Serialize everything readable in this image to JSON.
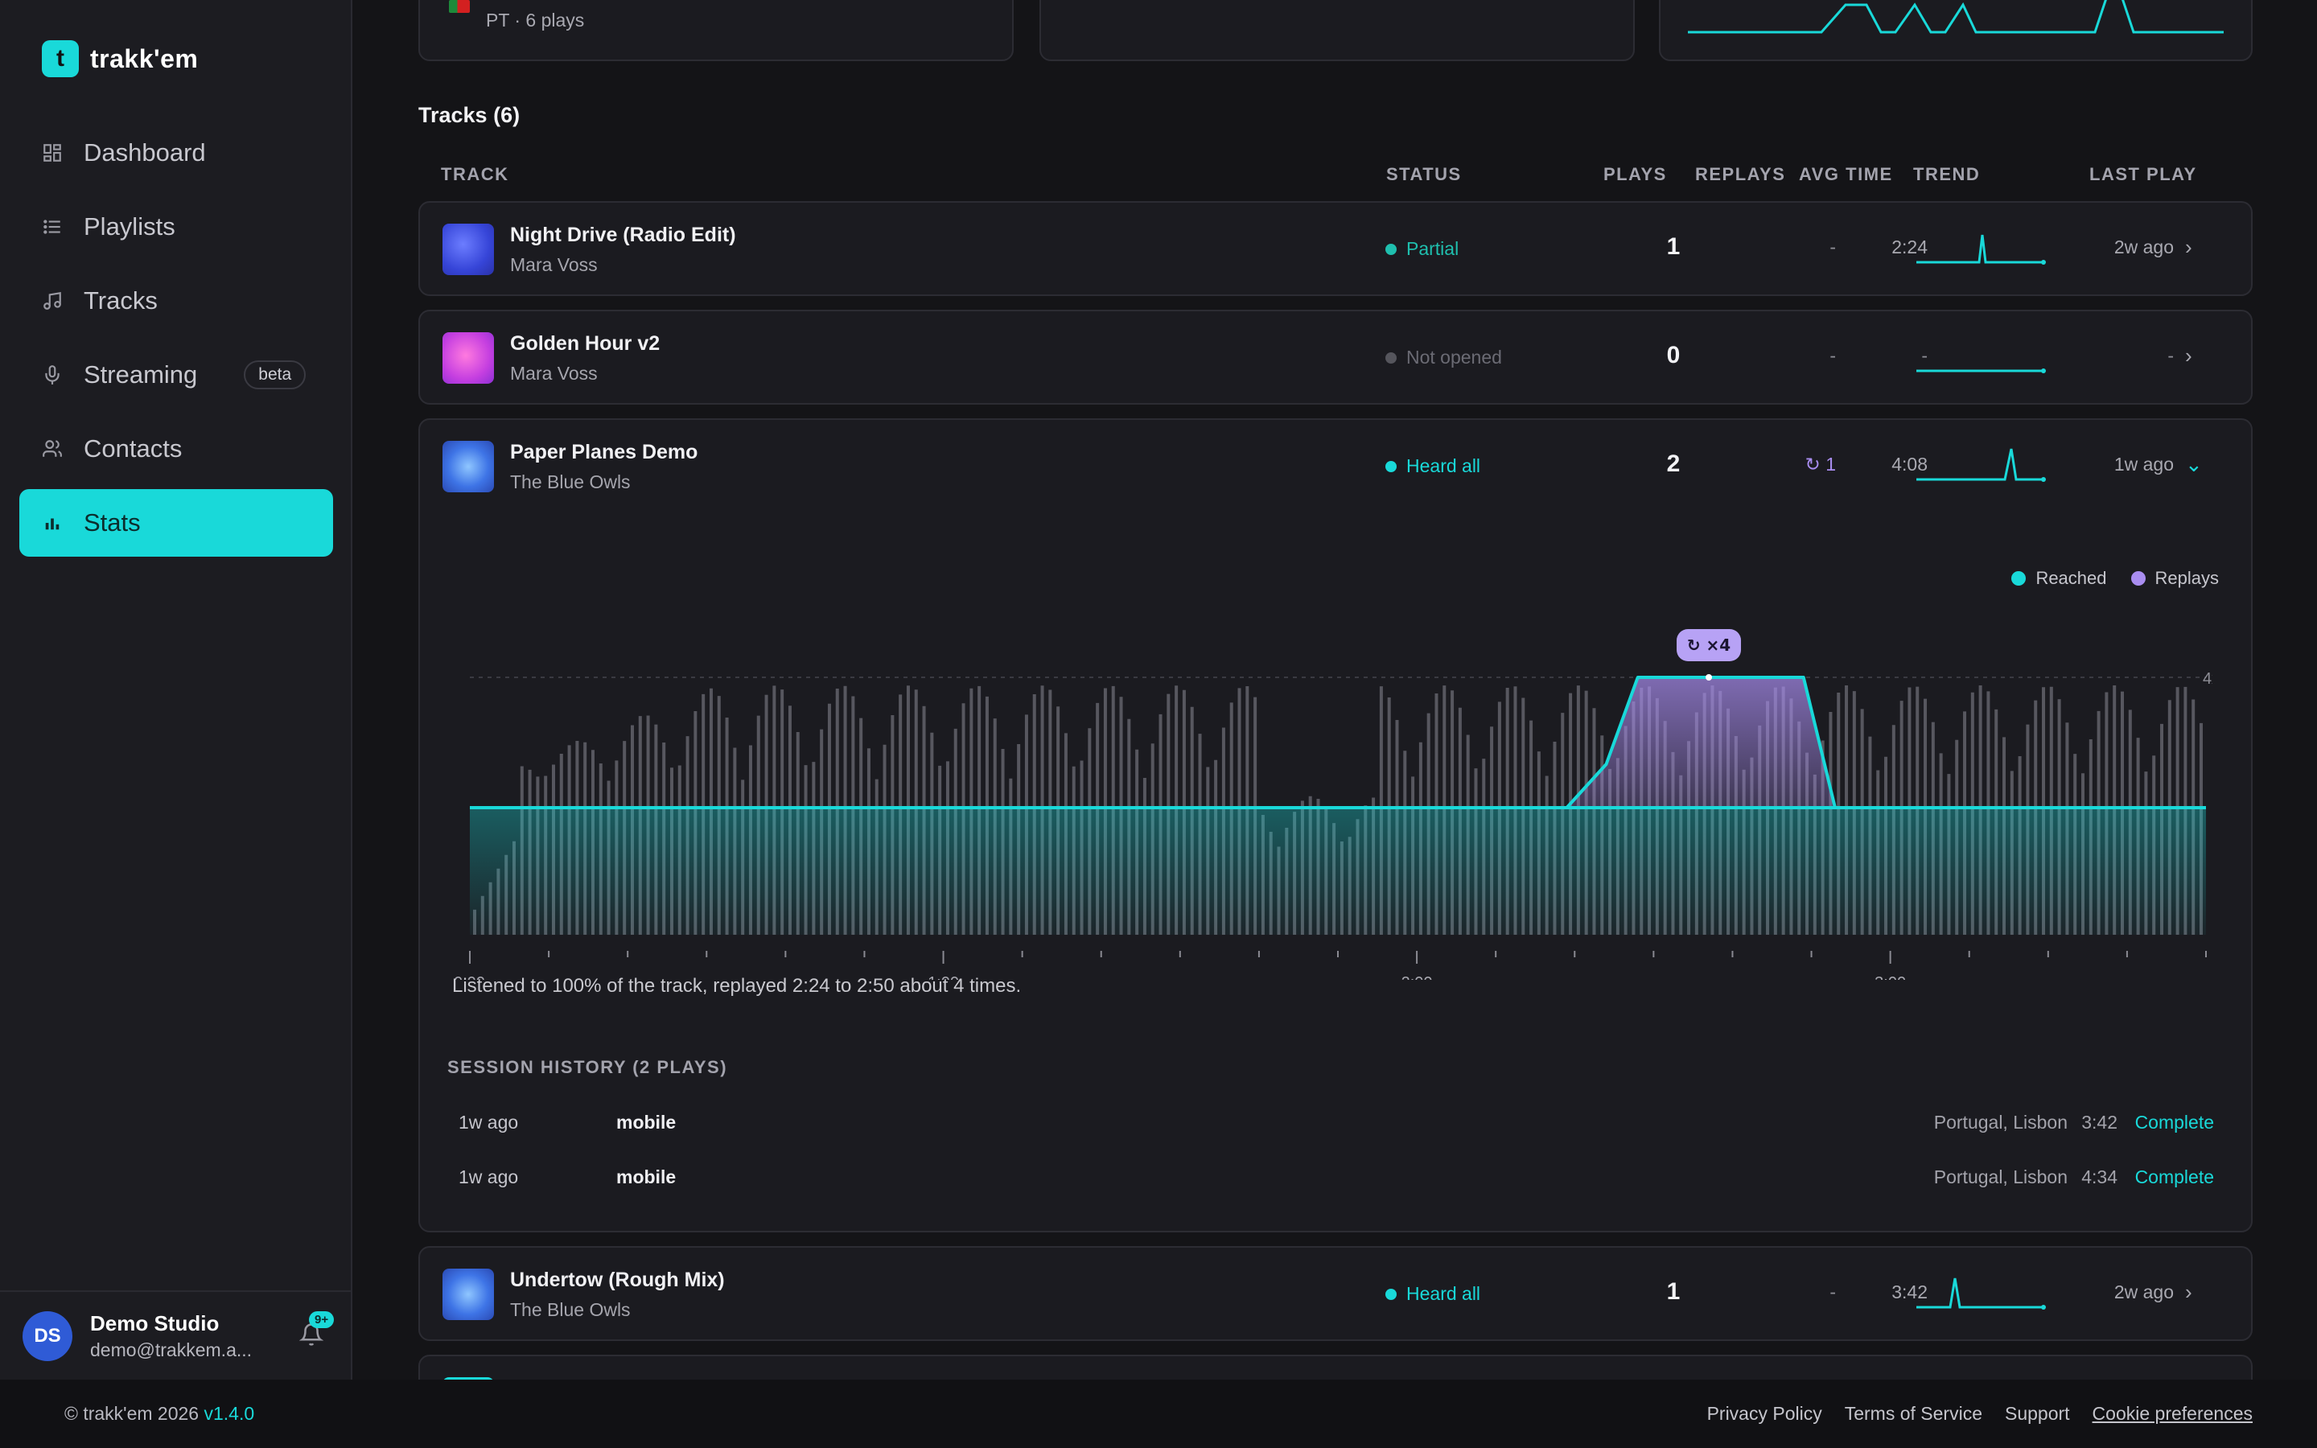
{
  "brand": {
    "name": "trakk'em",
    "mark": "t"
  },
  "nav": [
    {
      "label": "Dashboard",
      "icon": "dashboard-icon"
    },
    {
      "label": "Playlists",
      "icon": "list-icon"
    },
    {
      "label": "Tracks",
      "icon": "music-note-icon"
    },
    {
      "label": "Streaming",
      "icon": "microphone-icon",
      "badge": "beta"
    },
    {
      "label": "Contacts",
      "icon": "users-icon"
    },
    {
      "label": "Stats",
      "icon": "bar-chart-icon",
      "active": true
    }
  ],
  "user": {
    "initials": "DS",
    "name": "Demo Studio",
    "email": "demo@trakkem.a...",
    "notifications": "9+"
  },
  "top_card": {
    "subtitle": "PT · 6 plays"
  },
  "tracks": {
    "title": "Tracks (6)",
    "headers": {
      "track": "TRACK",
      "status": "STATUS",
      "plays": "PLAYS",
      "replays": "REPLAYS",
      "avg_time": "AVG TIME",
      "trend": "TREND",
      "last_play": "LAST PLAY"
    },
    "rows": [
      {
        "title": "Night Drive (Radio Edit)",
        "artist": "Mara Voss",
        "status": "Partial",
        "status_color": "#1fbfae",
        "plays": "1",
        "replays": "-",
        "avg_time": "2:24",
        "last_play": "2w ago",
        "chevron": "›"
      },
      {
        "title": "Golden Hour v2",
        "artist": "Mara Voss",
        "status": "Not opened",
        "status_color": "#6b6b74",
        "plays": "0",
        "replays": "-",
        "avg_time": "-",
        "last_play": "-",
        "chevron": "›"
      },
      {
        "title": "Paper Planes Demo",
        "artist": "The Blue Owls",
        "status": "Heard all",
        "status_color": "#19d9d9",
        "plays": "2",
        "replays": "↻ 1",
        "avg_time": "4:08",
        "last_play": "1w ago",
        "chevron": "⌄"
      },
      {
        "title": "Undertow (Rough Mix)",
        "artist": "The Blue Owls",
        "status": "Heard all",
        "status_color": "#19d9d9",
        "plays": "1",
        "replays": "-",
        "avg_time": "3:42",
        "last_play": "2w ago",
        "chevron": "›"
      }
    ]
  },
  "expanded": {
    "legend": {
      "reached": "Reached",
      "replays": "Replays"
    },
    "replay_badge": "↻ ×4",
    "y_marker": "4x",
    "caption": "Listened to 100% of the track, replayed 2:24 to 2:50 about 4 times.",
    "session_title": "SESSION HISTORY (2 PLAYS)",
    "sessions": [
      {
        "when": "1w ago",
        "device": "mobile",
        "location": "Portugal, Lisbon",
        "duration": "3:42",
        "result": "Complete"
      },
      {
        "when": "1w ago",
        "device": "mobile",
        "location": "Portugal, Lisbon",
        "duration": "4:34",
        "result": "Complete"
      }
    ]
  },
  "chart_data": {
    "type": "area",
    "xlabel": "",
    "ylabel": "",
    "x_ticks": [
      "0:00",
      "1:00",
      "2:00",
      "3:00"
    ],
    "duration_seconds": 220,
    "series": [
      {
        "name": "Reached",
        "note": "1x listen across full track",
        "points": [
          [
            0,
            1
          ],
          [
            220,
            1
          ]
        ]
      },
      {
        "name": "Replays",
        "points": [
          [
            0,
            1
          ],
          [
            139,
            1
          ],
          [
            144,
            2
          ],
          [
            148,
            4
          ],
          [
            169,
            4
          ],
          [
            173,
            1
          ],
          [
            220,
            1
          ]
        ]
      }
    ],
    "y_max_label": "4x",
    "colors": {
      "reached": "#19d9d9",
      "replays": "#a98df0"
    }
  },
  "footer": {
    "copyright": "© trakk'em 2026",
    "version": "v1.4.0",
    "links": [
      "Privacy Policy",
      "Terms of Service",
      "Support",
      "Cookie preferences"
    ]
  }
}
